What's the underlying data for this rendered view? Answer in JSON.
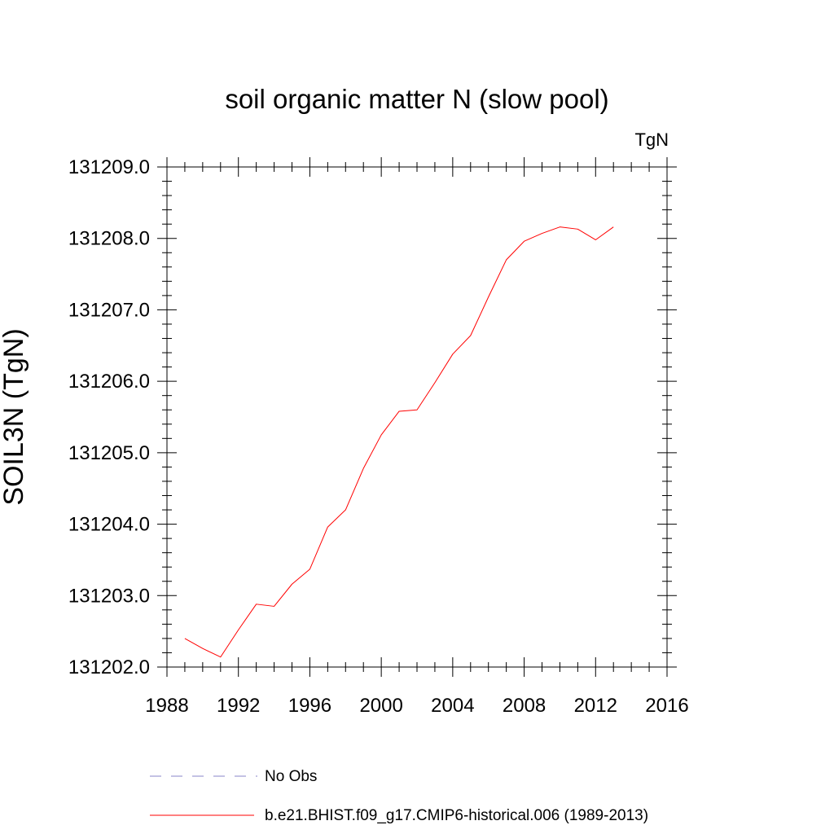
{
  "chart_data": {
    "type": "line",
    "title": "soil organic matter N (slow pool)",
    "units": "TgN",
    "ylabel": "SOIL3N  (TgN)",
    "xlabel": "",
    "xlim": [
      1988,
      2016
    ],
    "ylim": [
      131202.0,
      131209.0
    ],
    "xticks": [
      1988,
      1992,
      1996,
      2000,
      2004,
      2008,
      2012,
      2016
    ],
    "xtick_labels": [
      "1988",
      "1992",
      "1996",
      "2000",
      "2004",
      "2008",
      "2012",
      "2016"
    ],
    "yticks": [
      131202.0,
      131203.0,
      131204.0,
      131205.0,
      131206.0,
      131207.0,
      131208.0,
      131209.0
    ],
    "ytick_labels": [
      "131202.0",
      "131203.0",
      "131204.0",
      "131205.0",
      "131206.0",
      "131207.0",
      "131208.0",
      "131209.0"
    ],
    "grid": false,
    "legend_position": "bottom",
    "series": [
      {
        "name": "No Obs",
        "color": "#8a86c8",
        "dash": "dashed",
        "x": [],
        "y": []
      },
      {
        "name": "b.e21.BHIST.f09_g17.CMIP6-historical.006 (1989-2013)",
        "color": "#ff0000",
        "dash": "solid",
        "x": [
          1989,
          1990,
          1991,
          1992,
          1993,
          1994,
          1995,
          1996,
          1997,
          1998,
          1999,
          2000,
          2001,
          2002,
          2003,
          2004,
          2005,
          2006,
          2007,
          2008,
          2009,
          2010,
          2011,
          2012,
          2013
        ],
        "y": [
          131202.4,
          131202.26,
          131202.14,
          131202.52,
          131202.88,
          131202.85,
          131203.16,
          131203.37,
          131203.96,
          131204.2,
          131204.78,
          131205.25,
          131205.58,
          131205.6,
          131205.98,
          131206.38,
          131206.64,
          131207.18,
          131207.7,
          131207.96,
          131208.07,
          131208.16,
          131208.13,
          131207.98,
          131208.16
        ]
      }
    ]
  }
}
